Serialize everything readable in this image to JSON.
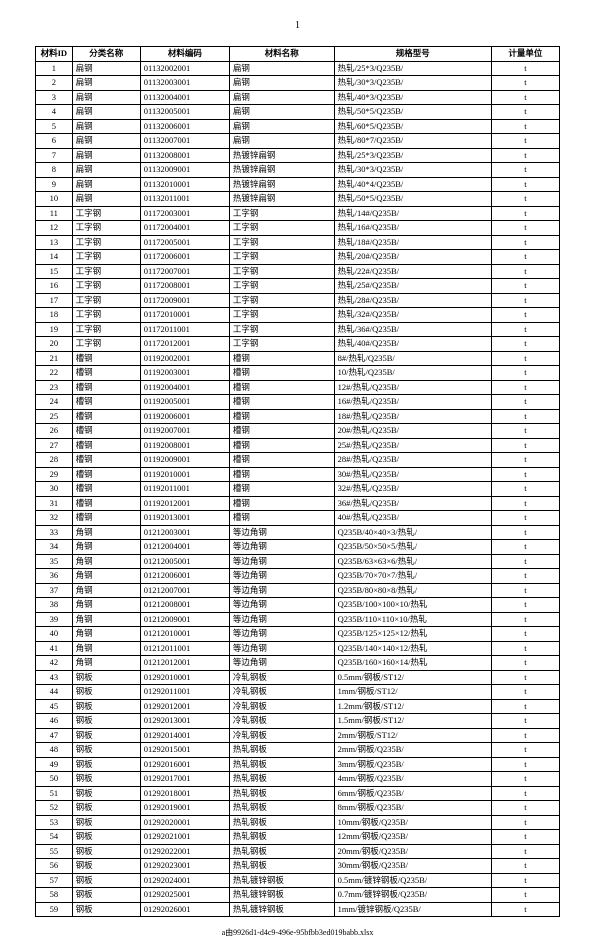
{
  "page_number": "1",
  "footer": "a由9926d1-d4c9-496e-95bfbb3ed019babb.xlsx",
  "table": {
    "headers": [
      "材料ID",
      "分类名称",
      "材料编码",
      "材料名称",
      "规格型号",
      "计量单位"
    ],
    "rows": [
      [
        "1",
        "扁钢",
        "01132002001",
        "扁钢",
        "热轧/25*3/Q235B/",
        "t"
      ],
      [
        "2",
        "扁钢",
        "01132003001",
        "扁钢",
        "热轧/30*3/Q235B/",
        "t"
      ],
      [
        "3",
        "扁钢",
        "01132004001",
        "扁钢",
        "热轧/40*3/Q235B/",
        "t"
      ],
      [
        "4",
        "扁钢",
        "01132005001",
        "扁钢",
        "热轧/50*5/Q235B/",
        "t"
      ],
      [
        "5",
        "扁钢",
        "01132006001",
        "扁钢",
        "热轧/60*5/Q235B/",
        "t"
      ],
      [
        "6",
        "扁钢",
        "01132007001",
        "扁钢",
        "热轧/80*7/Q235B/",
        "t"
      ],
      [
        "7",
        "扁钢",
        "01132008001",
        "热镀锌扁钢",
        "热轧/25*3/Q235B/",
        "t"
      ],
      [
        "8",
        "扁钢",
        "01132009001",
        "热镀锌扁钢",
        "热轧/30*3/Q235B/",
        "t"
      ],
      [
        "9",
        "扁钢",
        "01132010001",
        "热镀锌扁钢",
        "热轧/40*4/Q235B/",
        "t"
      ],
      [
        "10",
        "扁钢",
        "01132011001",
        "热镀锌扁钢",
        "热轧/50*5/Q235B/",
        "t"
      ],
      [
        "11",
        "工字钢",
        "01172003001",
        "工字钢",
        "热轧/14#/Q235B/",
        "t"
      ],
      [
        "12",
        "工字钢",
        "01172004001",
        "工字钢",
        "热轧/16#/Q235B/",
        "t"
      ],
      [
        "13",
        "工字钢",
        "01172005001",
        "工字钢",
        "热轧/18#/Q235B/",
        "t"
      ],
      [
        "14",
        "工字钢",
        "01172006001",
        "工字钢",
        "热轧/20#/Q235B/",
        "t"
      ],
      [
        "15",
        "工字钢",
        "01172007001",
        "工字钢",
        "热轧/22#/Q235B/",
        "t"
      ],
      [
        "16",
        "工字钢",
        "01172008001",
        "工字钢",
        "热轧/25#/Q235B/",
        "t"
      ],
      [
        "17",
        "工字钢",
        "01172009001",
        "工字钢",
        "热轧/28#/Q235B/",
        "t"
      ],
      [
        "18",
        "工字钢",
        "01172010001",
        "工字钢",
        "热轧/32#/Q235B/",
        "t"
      ],
      [
        "19",
        "工字钢",
        "01172011001",
        "工字钢",
        "热轧/36#/Q235B/",
        "t"
      ],
      [
        "20",
        "工字钢",
        "01172012001",
        "工字钢",
        "热轧/40#/Q235B/",
        "t"
      ],
      [
        "21",
        "槽钢",
        "01192002001",
        "槽钢",
        "8#/热轧/Q235B/",
        "t"
      ],
      [
        "22",
        "槽钢",
        "01192003001",
        "槽钢",
        "10/热轧/Q235B/",
        "t"
      ],
      [
        "23",
        "槽钢",
        "01192004001",
        "槽钢",
        "12#/热轧/Q235B/",
        "t"
      ],
      [
        "24",
        "槽钢",
        "01192005001",
        "槽钢",
        "16#/热轧/Q235B/",
        "t"
      ],
      [
        "25",
        "槽钢",
        "01192006001",
        "槽钢",
        "18#/热轧/Q235B/",
        "t"
      ],
      [
        "26",
        "槽钢",
        "01192007001",
        "槽钢",
        "20#/热轧/Q235B/",
        "t"
      ],
      [
        "27",
        "槽钢",
        "01192008001",
        "槽钢",
        "25#/热轧/Q235B/",
        "t"
      ],
      [
        "28",
        "槽钢",
        "01192009001",
        "槽钢",
        "28#/热轧/Q235B/",
        "t"
      ],
      [
        "29",
        "槽钢",
        "01192010001",
        "槽钢",
        "30#/热轧/Q235B/",
        "t"
      ],
      [
        "30",
        "槽钢",
        "01192011001",
        "槽钢",
        "32#/热轧/Q235B/",
        "t"
      ],
      [
        "31",
        "槽钢",
        "01192012001",
        "槽钢",
        "36#/热轧/Q235B/",
        "t"
      ],
      [
        "32",
        "槽钢",
        "01192013001",
        "槽钢",
        "40#/热轧/Q235B/",
        "t"
      ],
      [
        "33",
        "角钢",
        "01212003001",
        "等边角钢",
        "Q235B/40×40×3/热轧/",
        "t"
      ],
      [
        "34",
        "角钢",
        "01212004001",
        "等边角钢",
        "Q235B/50×50×5/热轧/",
        "t"
      ],
      [
        "35",
        "角钢",
        "01212005001",
        "等边角钢",
        "Q235B/63×63×6/热轧/",
        "t"
      ],
      [
        "36",
        "角钢",
        "01212006001",
        "等边角钢",
        "Q235B/70×70×7/热轧/",
        "t"
      ],
      [
        "37",
        "角钢",
        "01212007001",
        "等边角钢",
        "Q235B/80×80×8/热轧/",
        "t"
      ],
      [
        "38",
        "角钢",
        "01212008001",
        "等边角钢",
        "Q235B/100×100×10/热轧",
        "t"
      ],
      [
        "39",
        "角钢",
        "01212009001",
        "等边角钢",
        "Q235B/110×110×10/热轧",
        "t"
      ],
      [
        "40",
        "角钢",
        "01212010001",
        "等边角钢",
        "Q235B/125×125×12/热轧",
        "t"
      ],
      [
        "41",
        "角钢",
        "01212011001",
        "等边角钢",
        "Q235B/140×140×12/热轧",
        "t"
      ],
      [
        "42",
        "角钢",
        "01212012001",
        "等边角钢",
        "Q235B/160×160×14/热轧",
        "t"
      ],
      [
        "43",
        "钢板",
        "01292010001",
        "冷轧钢板",
        "0.5mm/钢板/ST12/",
        "t"
      ],
      [
        "44",
        "钢板",
        "01292011001",
        "冷轧钢板",
        "1mm/钢板/ST12/",
        "t"
      ],
      [
        "45",
        "钢板",
        "01292012001",
        "冷轧钢板",
        "1.2mm/钢板/ST12/",
        "t"
      ],
      [
        "46",
        "钢板",
        "01292013001",
        "冷轧钢板",
        "1.5mm/钢板/ST12/",
        "t"
      ],
      [
        "47",
        "钢板",
        "01292014001",
        "冷轧钢板",
        "2mm/钢板/ST12/",
        "t"
      ],
      [
        "48",
        "钢板",
        "01292015001",
        "热轧钢板",
        "2mm/钢板/Q235B/",
        "t"
      ],
      [
        "49",
        "钢板",
        "01292016001",
        "热轧钢板",
        "3mm/钢板/Q235B/",
        "t"
      ],
      [
        "50",
        "钢板",
        "01292017001",
        "热轧钢板",
        "4mm/钢板/Q235B/",
        "t"
      ],
      [
        "51",
        "钢板",
        "01292018001",
        "热轧钢板",
        "6mm/钢板/Q235B/",
        "t"
      ],
      [
        "52",
        "钢板",
        "01292019001",
        "热轧钢板",
        "8mm/钢板/Q235B/",
        "t"
      ],
      [
        "53",
        "钢板",
        "01292020001",
        "热轧钢板",
        "10mm/钢板/Q235B/",
        "t"
      ],
      [
        "54",
        "钢板",
        "01292021001",
        "热轧钢板",
        "12mm/钢板/Q235B/",
        "t"
      ],
      [
        "55",
        "钢板",
        "01292022001",
        "热轧钢板",
        "20mm/钢板/Q235B/",
        "t"
      ],
      [
        "56",
        "钢板",
        "01292023001",
        "热轧钢板",
        "30mm/钢板/Q235B/",
        "t"
      ],
      [
        "57",
        "钢板",
        "01292024001",
        "热轧镀锌钢板",
        "0.5mm/镀锌钢板/Q235B/",
        "t"
      ],
      [
        "58",
        "钢板",
        "01292025001",
        "热轧镀锌钢板",
        "0.7mm/镀锌钢板/Q235B/",
        "t"
      ],
      [
        "59",
        "钢板",
        "01292026001",
        "热轧镀锌钢板",
        "1mm/镀锌钢板/Q235B/",
        "t"
      ]
    ]
  }
}
